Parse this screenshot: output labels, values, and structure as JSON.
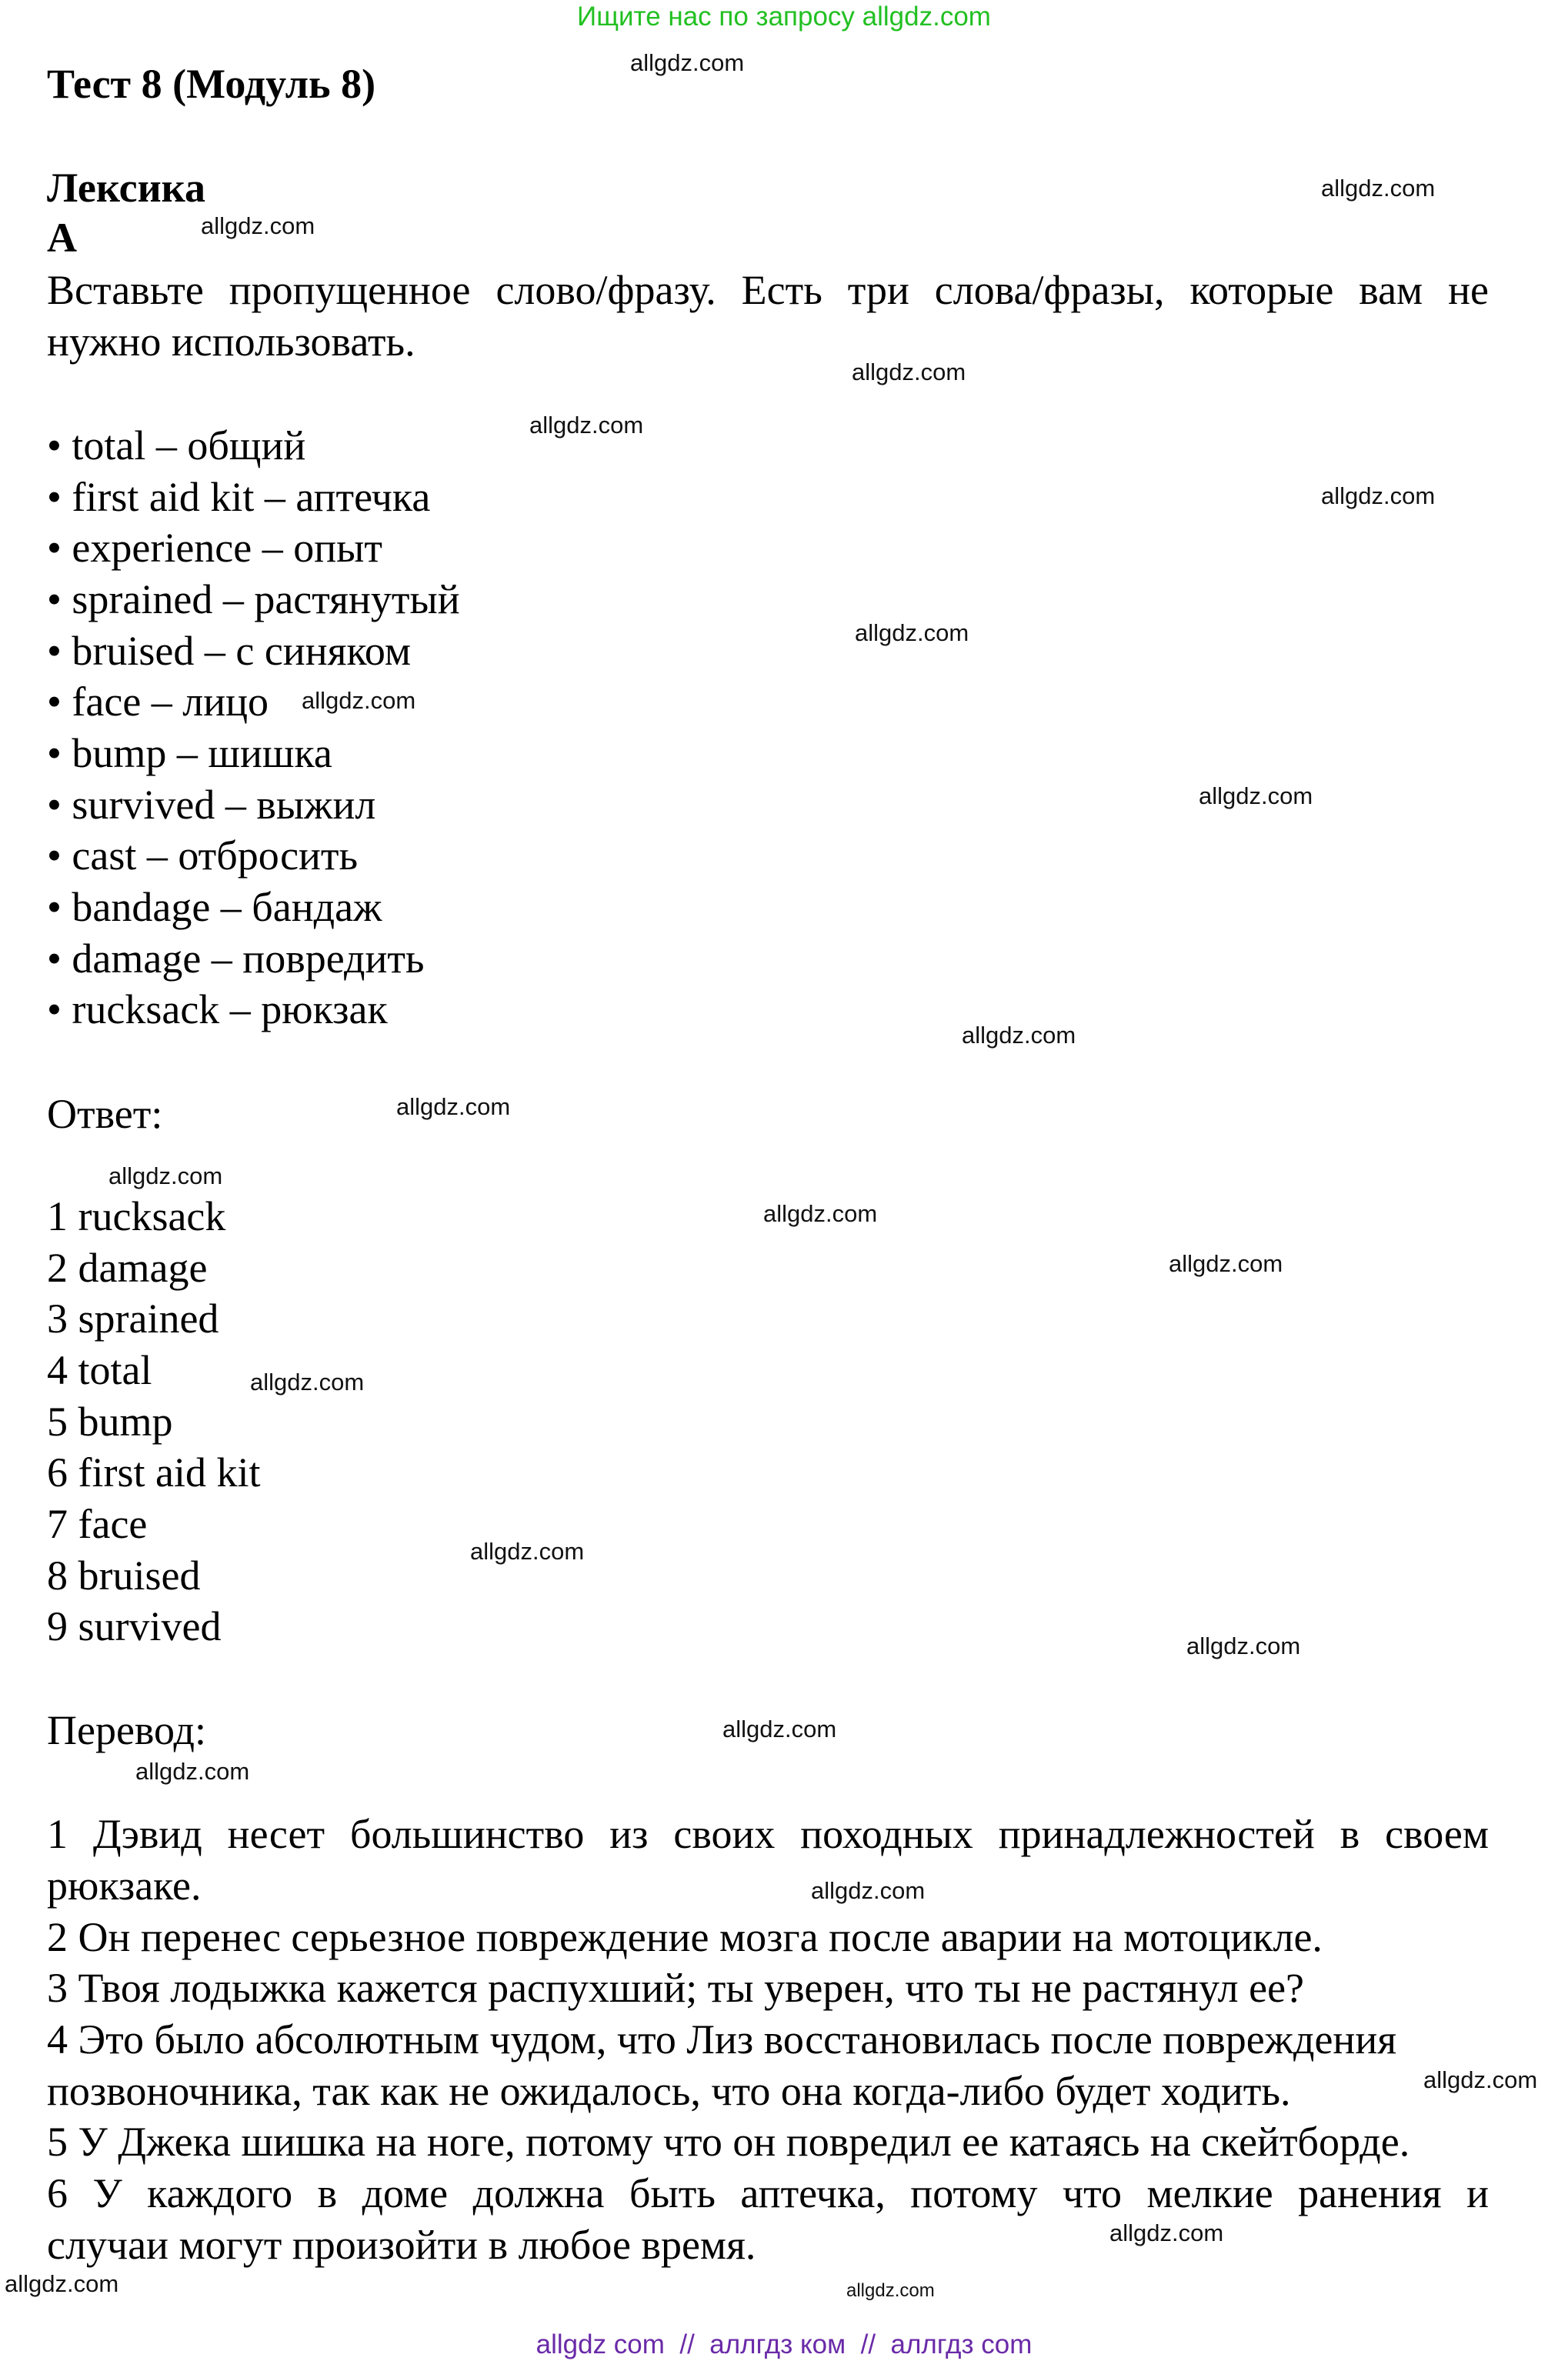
{
  "header_banner": "Ищите нас по запросу allgdz.com",
  "title": "Тест 8 (Модуль 8)",
  "section": "Лексика",
  "part": "A",
  "instruction": [
    "Вставьте пропущенное слово/фразу. Есть три слова/фразы, которые вам не",
    "нужно использовать."
  ],
  "vocabulary": [
    "• total – общий",
    "• first aid kit – аптечка",
    "• experience – опыт",
    "• sprained – растянутый",
    "• bruised – с синяком",
    "• face – лицо",
    "• bump – шишка",
    "• survived – выжил",
    "• cast – отбросить",
    "• bandage – бандаж",
    "• damage – повредить",
    "• rucksack – рюкзак"
  ],
  "answer_label": "Ответ:",
  "answers": [
    "1 rucksack",
    "2 damage",
    "3 sprained",
    "4 total",
    "5 bump",
    "6 first aid kit",
    "7 face",
    "8 bruised",
    "9 survived"
  ],
  "translation_label": "Перевод:",
  "translation_lines": [
    "1 Дэвид несет большинство из своих походных принадлежностей в своем",
    "рюкзаке.",
    "2 Он перенес серьезное повреждение мозга после аварии на мотоцикле.",
    "3 Твоя лодыжка кажется распухший; ты уверен, что ты не растянул ее?",
    "4 Это было абсолютным чудом, что Лиз восстановилась после повреждения",
    "позвоночника, так как не ожидалось, что она когда-либо будет ходить.",
    "5 У Джека шишка на ноге, потому что он повредил ее катаясь на скейтборде.",
    "6 У каждого в доме должна быть аптечка, потому что мелкие ранения и",
    "случаи могут произойти в любое время."
  ],
  "watermark": "allgdz.com",
  "footer_banner": "allgdz com  //  аллгдз ком  //  аллгдз com",
  "colors": {
    "header_banner": "#22c022",
    "footer_banner": "#6a2aa8",
    "text": "#000000"
  }
}
